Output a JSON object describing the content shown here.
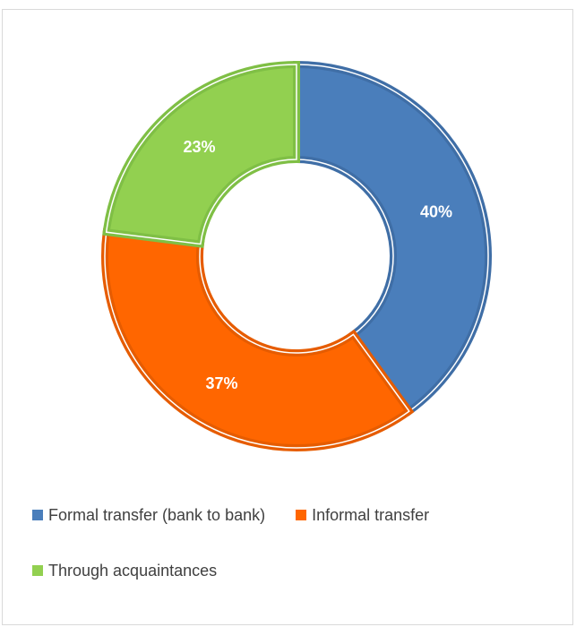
{
  "chart_data": {
    "type": "pie",
    "variant": "doughnut",
    "title": "",
    "categories": [
      "Formal transfer (bank to bank)",
      "Informal transfer",
      "Through acquaintances"
    ],
    "values": [
      40,
      37,
      23
    ],
    "labels": [
      "40%",
      "37%",
      "23%"
    ],
    "colors": [
      "#4a7ebb",
      "#ff6600",
      "#92d050"
    ],
    "border_colors": [
      "#3f6ea6",
      "#e65c00",
      "#7fbf45"
    ],
    "legend_placement": "bottom"
  }
}
